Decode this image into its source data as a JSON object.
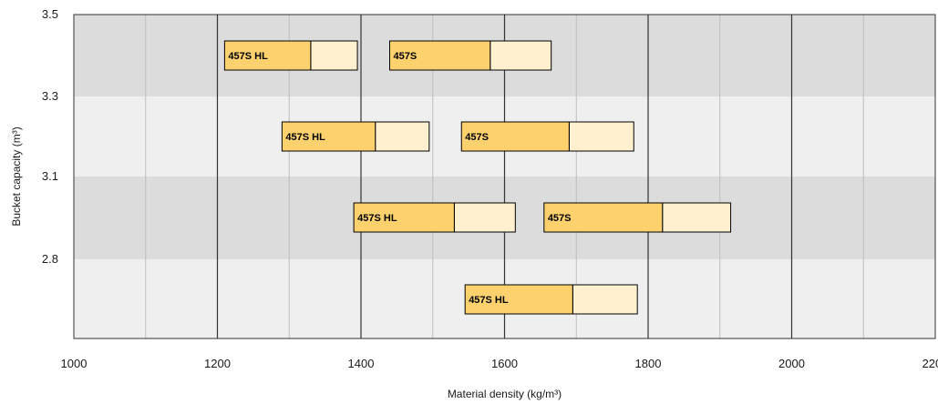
{
  "chart_data": {
    "type": "range-bar",
    "title": "",
    "xlabel": "Material density (kg/m³)",
    "ylabel": "Bucket capacity (m³)",
    "xlim": [
      1000,
      2200
    ],
    "x_ticks": [
      "1000",
      "1200",
      "1400",
      "1600",
      "1800",
      "2000",
      "2200"
    ],
    "y_ticks": [
      "3.5",
      "3.3",
      "3.1",
      "2.8"
    ],
    "rows": [
      {
        "capacity": 3.4,
        "bars": [
          {
            "label": "457S HL",
            "start": 1210,
            "mid": 1330,
            "end": 1395
          },
          {
            "label": "457S",
            "start": 1440,
            "mid": 1580,
            "end": 1665
          }
        ]
      },
      {
        "capacity": 3.2,
        "bars": [
          {
            "label": "457S HL",
            "start": 1290,
            "mid": 1420,
            "end": 1495
          },
          {
            "label": "457S",
            "start": 1540,
            "mid": 1690,
            "end": 1780
          }
        ]
      },
      {
        "capacity": 2.95,
        "bars": [
          {
            "label": "457S HL",
            "start": 1390,
            "mid": 1530,
            "end": 1615
          },
          {
            "label": "457S",
            "start": 1655,
            "mid": 1820,
            "end": 1915
          }
        ]
      },
      {
        "capacity": 2.7,
        "bars": [
          {
            "label": "457S HL",
            "start": 1545,
            "mid": 1695,
            "end": 1785
          }
        ]
      }
    ],
    "colors": {
      "band_dark": "#dcdcdc",
      "band_light": "#efefef",
      "bar_main": "#fdd26e",
      "bar_extension": "#fff1d0",
      "grid_major": "#333333",
      "grid_minor": "#bdbdbd"
    },
    "grid": true,
    "legend": "none"
  }
}
